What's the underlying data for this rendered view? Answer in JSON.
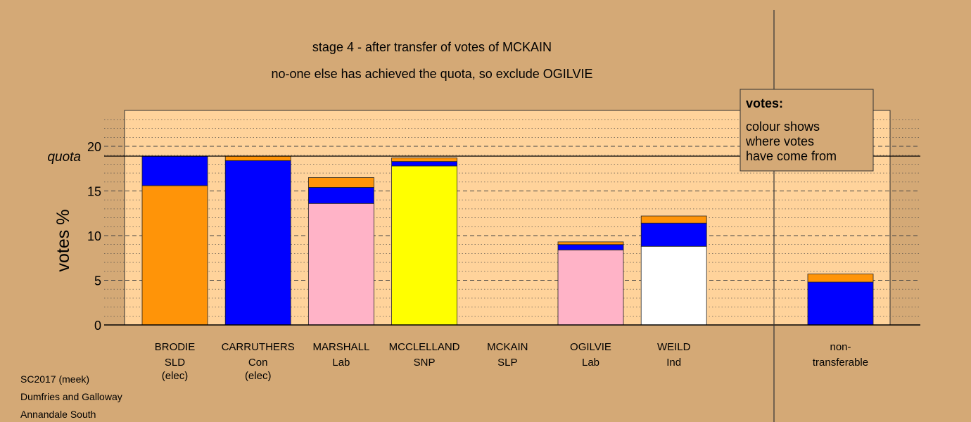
{
  "chart_data": {
    "type": "bar",
    "stacked": true,
    "title": "stage 4 - after transfer of votes of MCKAIN",
    "subtitle": "no-one else has achieved the quota, so exclude OGILVIE",
    "ylabel": "votes %",
    "ylim": [
      0,
      24
    ],
    "yticks": [
      "0",
      "5",
      "10",
      "15",
      "20"
    ],
    "quota": 18.9,
    "quota_label": "quota",
    "grid": "dotted minor, dashed major",
    "candidates": [
      {
        "name": "BRODIE",
        "party": "SLD",
        "status": "(elec)",
        "segments": [
          {
            "color": "#ff9408",
            "value": 15.6
          },
          {
            "color": "#0000ff",
            "value": 3.3
          }
        ]
      },
      {
        "name": "CARRUTHERS",
        "party": "Con",
        "status": "(elec)",
        "segments": [
          {
            "color": "#0000ff",
            "value": 18.4
          },
          {
            "color": "#ff9408",
            "value": 0.5
          }
        ]
      },
      {
        "name": "MARSHALL",
        "party": "Lab",
        "status": "",
        "segments": [
          {
            "color": "#ffb3c7",
            "value": 13.6
          },
          {
            "color": "#0000ff",
            "value": 1.8
          },
          {
            "color": "#ff9408",
            "value": 1.1
          }
        ]
      },
      {
        "name": "MCCLELLAND",
        "party": "SNP",
        "status": "",
        "segments": [
          {
            "color": "#ffff00",
            "value": 17.8
          },
          {
            "color": "#0000ff",
            "value": 0.5
          },
          {
            "color": "#ff9408",
            "value": 0.4
          }
        ]
      },
      {
        "name": "MCKAIN",
        "party": "SLP",
        "status": "",
        "segments": []
      },
      {
        "name": "OGILVIE",
        "party": "Lab",
        "status": "",
        "segments": [
          {
            "color": "#ffb3c7",
            "value": 8.4
          },
          {
            "color": "#0000ff",
            "value": 0.6
          },
          {
            "color": "#ff9408",
            "value": 0.3
          }
        ]
      },
      {
        "name": "WEILD",
        "party": "Ind",
        "status": "",
        "segments": [
          {
            "color": "#ffffff",
            "value": 8.8
          },
          {
            "color": "#0000ff",
            "value": 2.6
          },
          {
            "color": "#ff9408",
            "value": 0.8
          }
        ]
      }
    ],
    "nontransferable": {
      "label_line1": "non-",
      "label_line2": "transferable",
      "segments": [
        {
          "color": "#0000ff",
          "value": 4.8
        },
        {
          "color": "#ff9408",
          "value": 0.9
        }
      ]
    },
    "legend": {
      "title": "votes:",
      "lines": [
        "colour shows",
        "where votes",
        "have come from"
      ],
      "placement": "top-right"
    }
  },
  "footer": {
    "line1": "SC2017 (meek)",
    "line2": "Dumfries and Galloway",
    "line3": "Annandale South"
  },
  "colors": {
    "background": "#d4a976",
    "plot_background": "#ffd39b",
    "legend_background": "#d4a976"
  }
}
